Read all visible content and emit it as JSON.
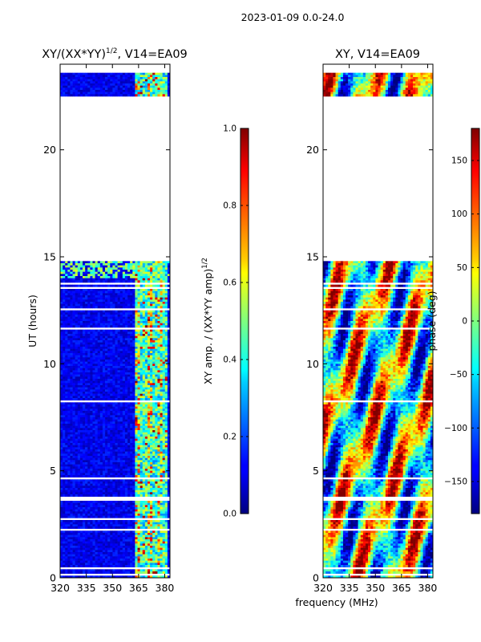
{
  "figure": {
    "suptitle": "2023-01-09 0.0-24.0",
    "xlabel": "frequency (MHz)"
  },
  "chart_data": [
    {
      "type": "heatmap",
      "title": "XY/(XX*YY)",
      "title_exp": "1/2",
      "title_suffix": ", V14=EA09",
      "xlabel": "",
      "ylabel": "UT (hours)",
      "xlim": [
        320,
        383
      ],
      "ylim": [
        0,
        24
      ],
      "xticks": [
        320,
        335,
        350,
        365,
        380
      ],
      "yticks": [
        0,
        5,
        10,
        15,
        20
      ],
      "colormap": "jet",
      "colorbar": {
        "label": "XY amp. / (XX*YY amp)",
        "label_exp": "1/2",
        "range": [
          0.0,
          1.0
        ],
        "ticks": [
          "0.0",
          "0.2",
          "0.4",
          "0.6",
          "0.8",
          "1.0"
        ]
      },
      "data_hours": [
        [
          0,
          3.6
        ],
        [
          3.85,
          14.85
        ],
        [
          22.5,
          23.6
        ]
      ],
      "bright_band_mhz": [
        363,
        382
      ]
    },
    {
      "type": "heatmap",
      "title": "XY, V14=EA09",
      "xlabel": "",
      "ylabel": "",
      "xlim": [
        320,
        383
      ],
      "ylim": [
        0,
        24
      ],
      "xticks": [
        320,
        335,
        350,
        365,
        380
      ],
      "yticks": [
        0,
        5,
        10,
        15,
        20
      ],
      "colormap": "jet",
      "colorbar": {
        "label": "phase (deg)",
        "range": [
          -180,
          180
        ],
        "ticks": [
          "150",
          "100",
          "50",
          "0",
          "−50",
          "−100",
          "−150"
        ]
      },
      "data_hours": [
        [
          0,
          3.6
        ],
        [
          3.85,
          14.85
        ],
        [
          22.5,
          23.6
        ]
      ]
    }
  ]
}
